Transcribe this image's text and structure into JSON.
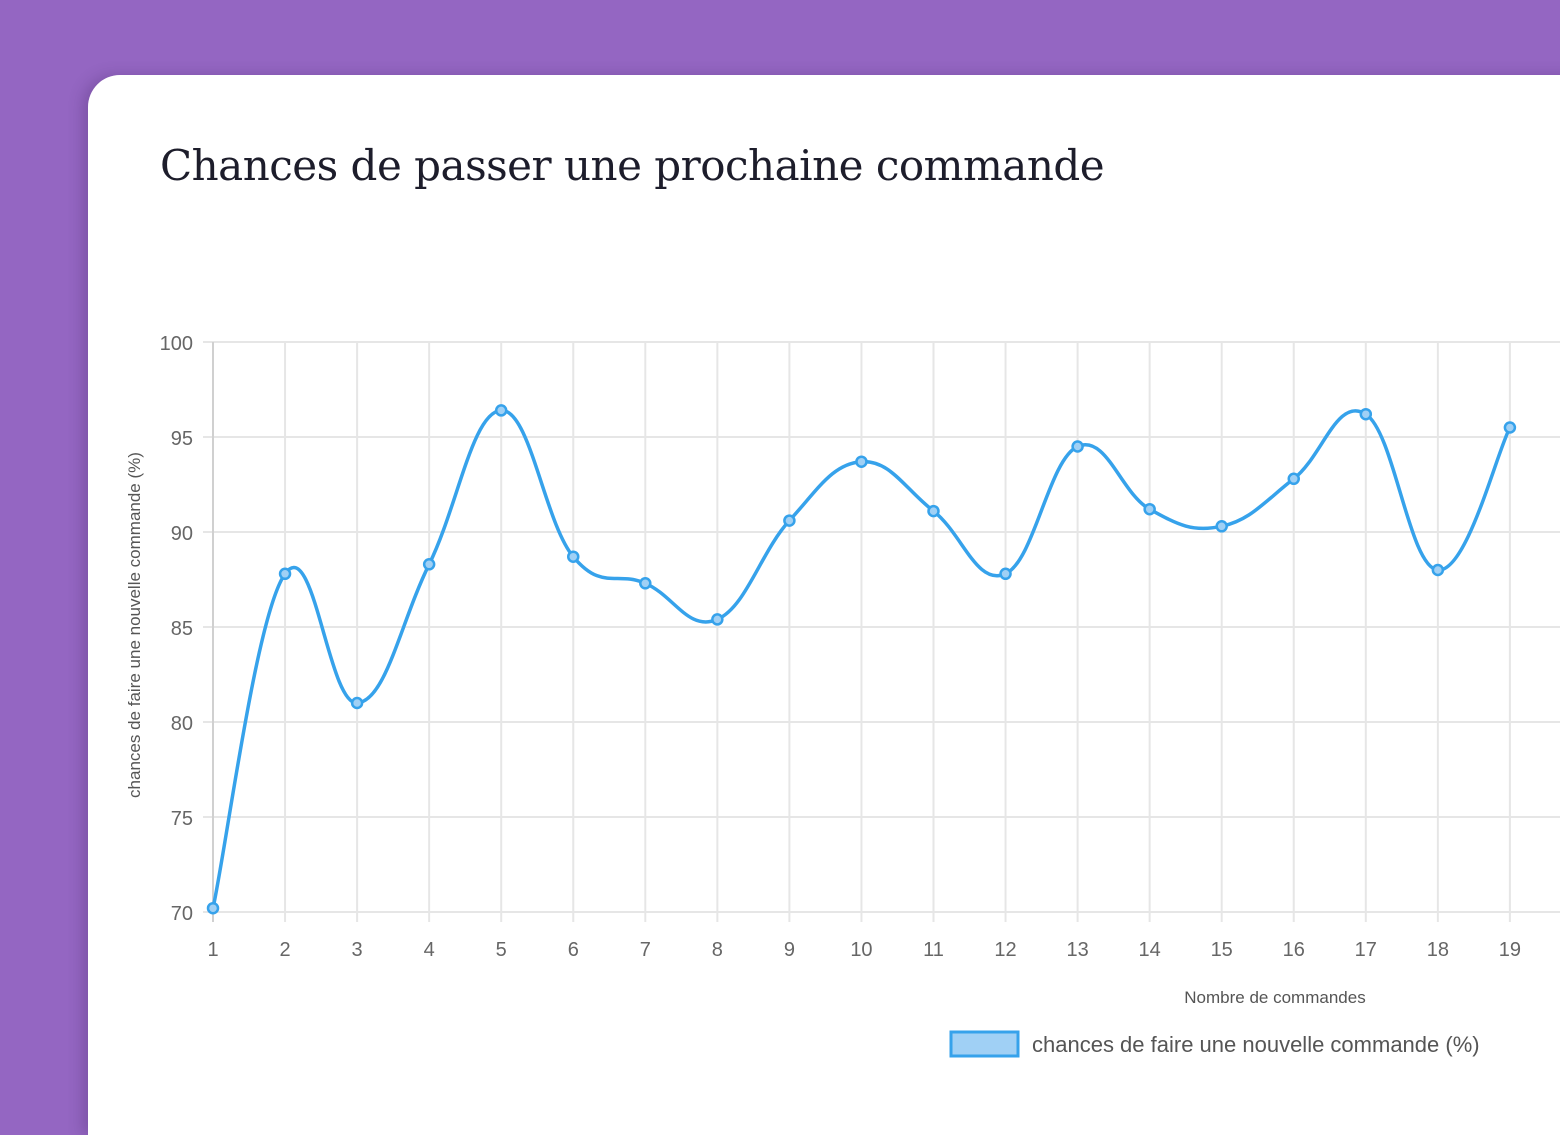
{
  "chart_data": {
    "type": "line",
    "title": "Chances de passer une prochaine commande",
    "xlabel": "Nombre de commandes",
    "ylabel": "chances de faire une nouvelle commande (%)",
    "ylim": [
      70,
      100
    ],
    "yticks": [
      "70",
      "75",
      "80",
      "85",
      "90",
      "95",
      "100"
    ],
    "x": [
      "1",
      "2",
      "3",
      "4",
      "5",
      "6",
      "7",
      "8",
      "9",
      "10",
      "11",
      "12",
      "13",
      "14",
      "15",
      "16",
      "17",
      "18",
      "19"
    ],
    "series": [
      {
        "name": "chances de faire une nouvelle commande (%)",
        "values": [
          70.2,
          87.8,
          81.0,
          88.3,
          96.4,
          88.7,
          87.3,
          85.4,
          90.6,
          93.7,
          91.1,
          87.8,
          94.5,
          91.2,
          90.3,
          92.8,
          96.2,
          88.0,
          95.5
        ],
        "color": "#36a2eb",
        "fill": "#a0d0f5"
      }
    ],
    "grid": true,
    "legend": "bottom"
  },
  "colors": {
    "background": "#9466c2",
    "card": "#ffffff"
  }
}
